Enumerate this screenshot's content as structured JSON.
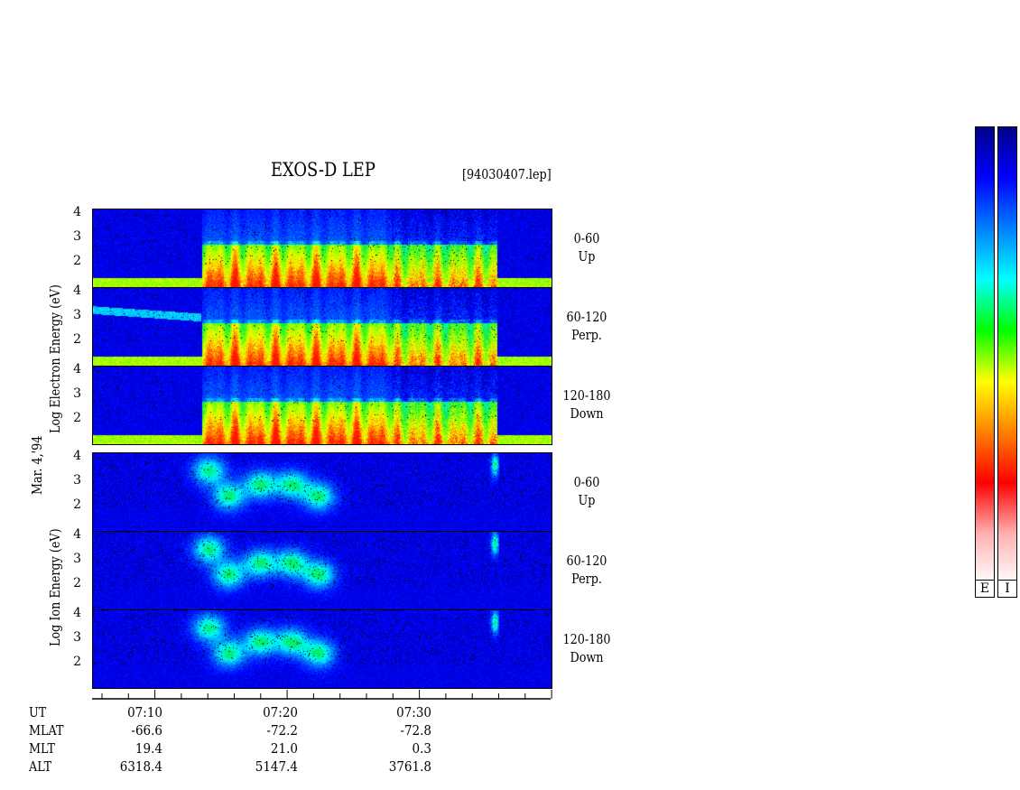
{
  "header": {
    "title": "EXOS-D LEP",
    "file": "[94030407.lep]"
  },
  "left_labels": {
    "date": "Mar. 4,'94",
    "electron_axis": "Log  Electron  Energy  (eV)",
    "ion_axis": "Log  Ion  Energy  (eV)"
  },
  "colors": {
    "scale": [
      "#ffffff",
      "#ffb0b0",
      "#ff0000",
      "#ff8000",
      "#ffff00",
      "#00ff00",
      "#00ffff",
      "#0080ff",
      "#0000ff",
      "#00008b"
    ]
  },
  "chart_data": {
    "type": "heatmap",
    "title": "EXOS-D LEP",
    "x_unit": "UT",
    "xlim": [
      "07:05",
      "07:40"
    ],
    "x_ticks": [
      "07:10",
      "07:20",
      "07:30"
    ],
    "yticks": [
      "4",
      "3",
      "2"
    ],
    "ylim": [
      1,
      4.2
    ],
    "panels": [
      {
        "species": "Electron",
        "pitch": "0-60",
        "dir": "Up"
      },
      {
        "species": "Electron",
        "pitch": "60-120",
        "dir": "Perp."
      },
      {
        "species": "Electron",
        "pitch": "120-180",
        "dir": "Down"
      },
      {
        "species": "Ion",
        "pitch": "0-60",
        "dir": "Up"
      },
      {
        "species": "Ion",
        "pitch": "60-120",
        "dir": "Perp."
      },
      {
        "species": "Ion",
        "pitch": "120-180",
        "dir": "Down"
      }
    ],
    "table": {
      "rows": [
        {
          "label": "UT",
          "values": [
            "07:10",
            "07:20",
            "07:30"
          ]
        },
        {
          "label": "MLAT",
          "values": [
            "-66.6",
            "-72.2",
            "-72.8"
          ]
        },
        {
          "label": "MLT",
          "values": [
            "19.4",
            "21.0",
            "0.3"
          ]
        },
        {
          "label": "ALT",
          "values": [
            "6318.4",
            "5147.4",
            "3761.8"
          ]
        }
      ]
    },
    "colorbars": [
      "E",
      "I"
    ]
  }
}
